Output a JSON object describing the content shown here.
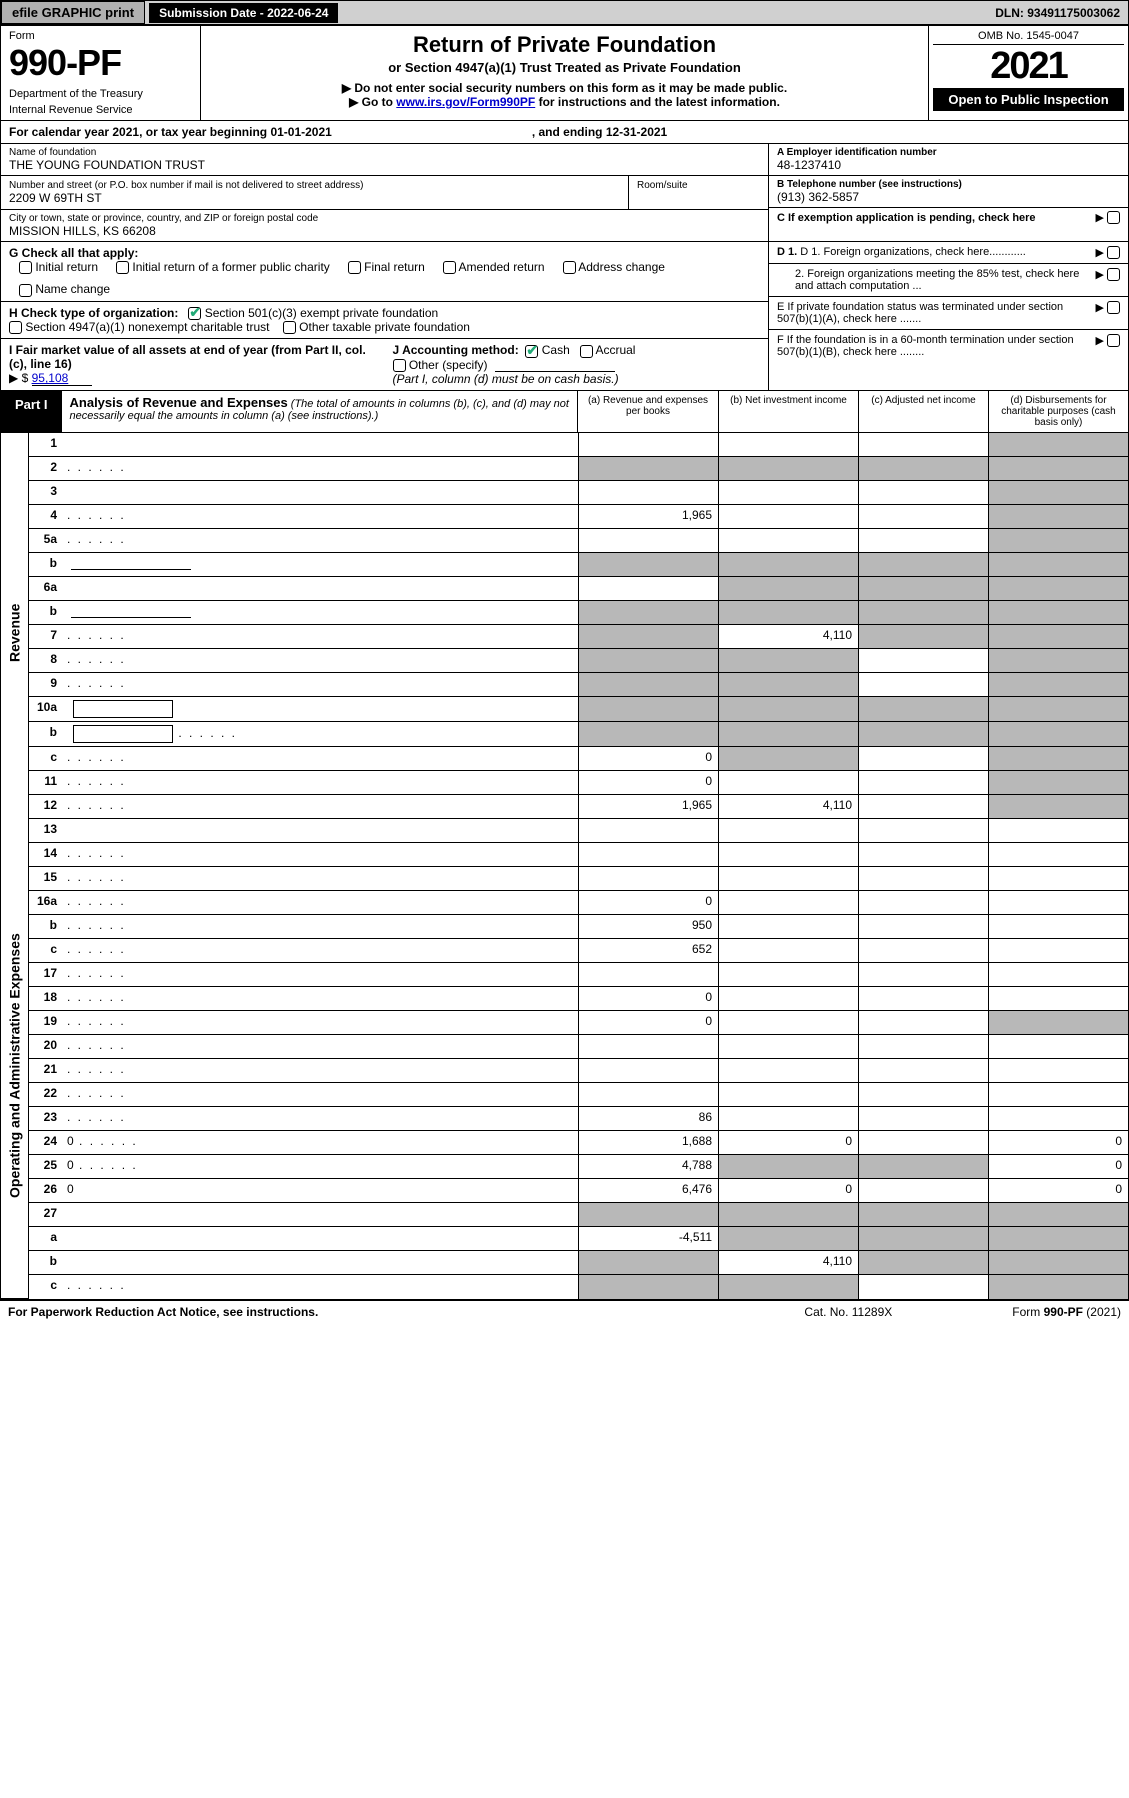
{
  "colors": {
    "shade": "#b8b8b8",
    "black": "#000000",
    "link": "#0000cc",
    "check": "#22aa77"
  },
  "topbar": {
    "efile": "efile GRAPHIC print",
    "subdate_label": "Submission Date - 2022-06-24",
    "dln": "DLN: 93491175003062"
  },
  "header": {
    "form_label": "Form",
    "form_num": "990-PF",
    "dept": "Department of the Treasury",
    "irs": "Internal Revenue Service",
    "title": "Return of Private Foundation",
    "subtitle": "or Section 4947(a)(1) Trust Treated as Private Foundation",
    "note1": "▶ Do not enter social security numbers on this form as it may be made public.",
    "note2_pre": "▶ Go to ",
    "note2_link": "www.irs.gov/Form990PF",
    "note2_post": " for instructions and the latest information.",
    "omb": "OMB No. 1545-0047",
    "year": "2021",
    "open": "Open to Public Inspection"
  },
  "calrow": {
    "text": "For calendar year 2021, or tax year beginning 01-01-2021",
    "ending": ", and ending 12-31-2021"
  },
  "name": {
    "lbl": "Name of foundation",
    "val": "THE YOUNG FOUNDATION TRUST"
  },
  "addr": {
    "lbl": "Number and street (or P.O. box number if mail is not delivered to street address)",
    "val": "2209 W 69TH ST",
    "room_lbl": "Room/suite"
  },
  "city": {
    "lbl": "City or town, state or province, country, and ZIP or foreign postal code",
    "val": "MISSION HILLS, KS  66208"
  },
  "A": {
    "lbl": "A Employer identification number",
    "val": "48-1237410"
  },
  "B": {
    "lbl": "B Telephone number (see instructions)",
    "val": "(913) 362-5857"
  },
  "C": {
    "lbl": "C If exemption application is pending, check here"
  },
  "D": {
    "d1": "D 1. Foreign organizations, check here............",
    "d2": "2. Foreign organizations meeting the 85% test, check here and attach computation ..."
  },
  "E": {
    "lbl": "E  If private foundation status was terminated under section 507(b)(1)(A), check here ......."
  },
  "F": {
    "lbl": "F  If the foundation is in a 60-month termination under section 507(b)(1)(B), check here ........"
  },
  "G": {
    "lbl": "G Check all that apply:",
    "opts": [
      "Initial return",
      "Initial return of a former public charity",
      "Final return",
      "Amended return",
      "Address change",
      "Name change"
    ]
  },
  "H": {
    "lbl": "H Check type of organization:",
    "o1": "Section 501(c)(3) exempt private foundation",
    "o2": "Section 4947(a)(1) nonexempt charitable trust",
    "o3": "Other taxable private foundation"
  },
  "I": {
    "lbl": "I Fair market value of all assets at end of year (from Part II, col. (c), line 16)",
    "val_pre": "▶ $",
    "val": "95,108"
  },
  "J": {
    "lbl": "J Accounting method:",
    "cash": "Cash",
    "accrual": "Accrual",
    "other": "Other (specify)",
    "note": "(Part I, column (d) must be on cash basis.)"
  },
  "part1": {
    "tab": "Part I",
    "title": "Analysis of Revenue and Expenses",
    "note": "(The total of amounts in columns (b), (c), and (d) may not necessarily equal the amounts in column (a) (see instructions).)",
    "cols": {
      "a": "(a)  Revenue and expenses per books",
      "b": "(b)  Net investment income",
      "c": "(c)  Adjusted net income",
      "d": "(d)  Disbursements for charitable purposes (cash basis only)"
    }
  },
  "sidelabels": {
    "rev": "Revenue",
    "exp": "Operating and Administrative Expenses"
  },
  "rows": [
    {
      "n": "1",
      "d": "",
      "a": "",
      "b": "",
      "c": "",
      "sd": true
    },
    {
      "n": "2",
      "d": "",
      "a": "",
      "b": "",
      "c": "",
      "dots": true,
      "sa": true,
      "sb": true,
      "sc": true,
      "sd": true,
      "html": true
    },
    {
      "n": "3",
      "d": "",
      "a": "",
      "b": "",
      "c": "",
      "sd": true
    },
    {
      "n": "4",
      "d": "",
      "a": "1,965",
      "b": "",
      "c": "",
      "dots": true,
      "sd": true
    },
    {
      "n": "5a",
      "d": "",
      "a": "",
      "b": "",
      "c": "",
      "dots": true,
      "sd": true
    },
    {
      "n": "b",
      "d": "",
      "a": "",
      "b": "",
      "c": "",
      "line": true,
      "sa": true,
      "sb": true,
      "sc": true,
      "sd": true
    },
    {
      "n": "6a",
      "d": "",
      "a": "",
      "b": "",
      "c": "",
      "sb": true,
      "sc": true,
      "sd": true
    },
    {
      "n": "b",
      "d": "",
      "a": "",
      "b": "",
      "c": "",
      "line": true,
      "sa": true,
      "sb": true,
      "sc": true,
      "sd": true
    },
    {
      "n": "7",
      "d": "",
      "a": "",
      "b": "4,110",
      "c": "",
      "dots": true,
      "sa": true,
      "sc": true,
      "sd": true
    },
    {
      "n": "8",
      "d": "",
      "a": "",
      "b": "",
      "c": "",
      "dots": true,
      "sa": true,
      "sb": true,
      "sd": true
    },
    {
      "n": "9",
      "d": "",
      "a": "",
      "b": "",
      "c": "",
      "dots": true,
      "sa": true,
      "sb": true,
      "sd": true
    },
    {
      "n": "10a",
      "d": "",
      "a": "",
      "b": "",
      "c": "",
      "box": true,
      "sa": true,
      "sb": true,
      "sc": true,
      "sd": true
    },
    {
      "n": "b",
      "d": "",
      "a": "",
      "b": "",
      "c": "",
      "box": true,
      "dots": true,
      "sa": true,
      "sb": true,
      "sc": true,
      "sd": true
    },
    {
      "n": "c",
      "d": "",
      "a": "0",
      "b": "",
      "c": "",
      "dots": true,
      "sb": true,
      "sd": true
    },
    {
      "n": "11",
      "d": "",
      "a": "0",
      "b": "",
      "c": "",
      "dots": true,
      "sd": true
    },
    {
      "n": "12",
      "d": "",
      "a": "1,965",
      "b": "4,110",
      "c": "",
      "dots": true,
      "sd": true,
      "html": true
    },
    {
      "n": "13",
      "d": "",
      "a": "",
      "b": "",
      "c": ""
    },
    {
      "n": "14",
      "d": "",
      "a": "",
      "b": "",
      "c": "",
      "dots": true
    },
    {
      "n": "15",
      "d": "",
      "a": "",
      "b": "",
      "c": "",
      "dots": true
    },
    {
      "n": "16a",
      "d": "",
      "a": "0",
      "b": "",
      "c": "",
      "dots": true
    },
    {
      "n": "b",
      "d": "",
      "a": "950",
      "b": "",
      "c": "",
      "dots": true
    },
    {
      "n": "c",
      "d": "",
      "a": "652",
      "b": "",
      "c": "",
      "dots": true
    },
    {
      "n": "17",
      "d": "",
      "a": "",
      "b": "",
      "c": "",
      "dots": true
    },
    {
      "n": "18",
      "d": "",
      "a": "0",
      "b": "",
      "c": "",
      "dots": true
    },
    {
      "n": "19",
      "d": "",
      "a": "0",
      "b": "",
      "c": "",
      "dots": true,
      "sd": true
    },
    {
      "n": "20",
      "d": "",
      "a": "",
      "b": "",
      "c": "",
      "dots": true
    },
    {
      "n": "21",
      "d": "",
      "a": "",
      "b": "",
      "c": "",
      "dots": true
    },
    {
      "n": "22",
      "d": "",
      "a": "",
      "b": "",
      "c": "",
      "dots": true
    },
    {
      "n": "23",
      "d": "",
      "a": "86",
      "b": "",
      "c": "",
      "dots": true
    },
    {
      "n": "24",
      "d": "0",
      "a": "1,688",
      "b": "0",
      "c": "",
      "dots": true,
      "html": true
    },
    {
      "n": "25",
      "d": "0",
      "a": "4,788",
      "b": "",
      "c": "",
      "dots": true,
      "sb": true,
      "sc": true
    },
    {
      "n": "26",
      "d": "0",
      "a": "6,476",
      "b": "0",
      "c": "",
      "html": true
    },
    {
      "n": "27",
      "d": "",
      "a": "",
      "b": "",
      "c": "",
      "sa": true,
      "sb": true,
      "sc": true,
      "sd": true
    },
    {
      "n": "a",
      "d": "",
      "a": "-4,511",
      "b": "",
      "c": "",
      "html": true,
      "sb": true,
      "sc": true,
      "sd": true
    },
    {
      "n": "b",
      "d": "",
      "a": "",
      "b": "4,110",
      "c": "",
      "html": true,
      "sa": true,
      "sc": true,
      "sd": true
    },
    {
      "n": "c",
      "d": "",
      "a": "",
      "b": "",
      "c": "",
      "dots": true,
      "html": true,
      "sa": true,
      "sb": true,
      "sd": true
    }
  ],
  "revenue_row_count": 16,
  "footer": {
    "left": "For Paperwork Reduction Act Notice, see instructions.",
    "mid": "Cat. No. 11289X",
    "right": "Form 990-PF (2021)"
  }
}
